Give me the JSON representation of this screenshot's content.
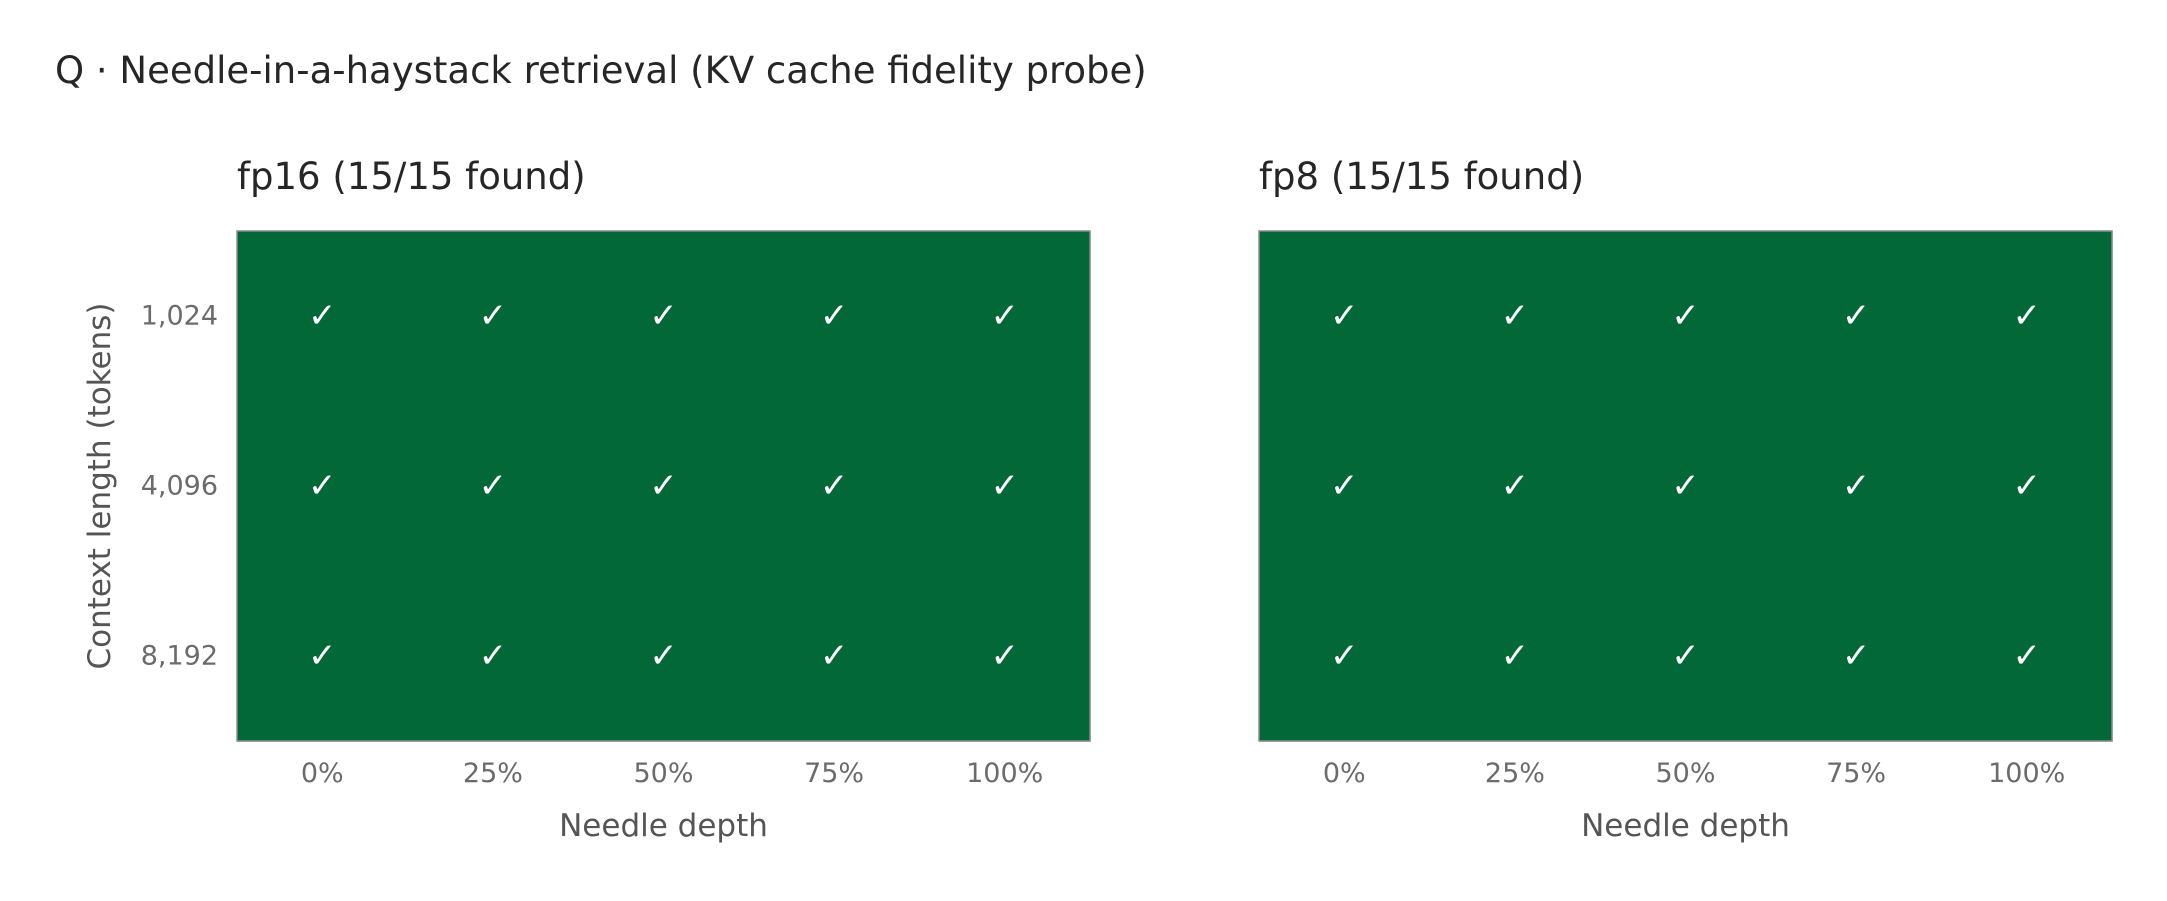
{
  "figure": {
    "title": "Q · Needle-in-a-haystack retrieval  (KV cache fidelity probe)"
  },
  "colors": {
    "found": "#036837",
    "not_found": "#d7301f",
    "mark": "#ffffff",
    "frame": "#8c8c8c"
  },
  "chart_data": [
    {
      "type": "heatmap",
      "title": "fp16  (15/15 found)",
      "xlabel": "Needle depth",
      "ylabel": "Context length (tokens)",
      "x_categories": [
        "0%",
        "25%",
        "50%",
        "75%",
        "100%"
      ],
      "y_categories": [
        "1,024",
        "4,096",
        "8,192"
      ],
      "cell_symbol": "✓",
      "values": [
        [
          1,
          1,
          1,
          1,
          1
        ],
        [
          1,
          1,
          1,
          1,
          1
        ],
        [
          1,
          1,
          1,
          1,
          1
        ]
      ]
    },
    {
      "type": "heatmap",
      "title": "fp8  (15/15 found)",
      "xlabel": "Needle depth",
      "ylabel": "",
      "x_categories": [
        "0%",
        "25%",
        "50%",
        "75%",
        "100%"
      ],
      "y_categories": [
        "1,024",
        "4,096",
        "8,192"
      ],
      "cell_symbol": "✓",
      "values": [
        [
          1,
          1,
          1,
          1,
          1
        ],
        [
          1,
          1,
          1,
          1,
          1
        ],
        [
          1,
          1,
          1,
          1,
          1
        ]
      ]
    }
  ]
}
